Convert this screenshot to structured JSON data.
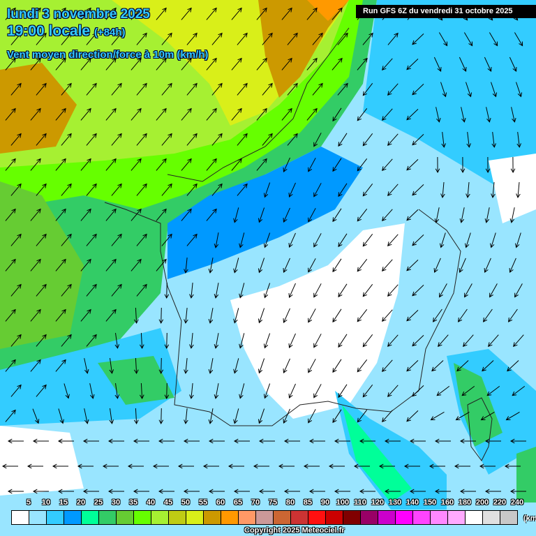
{
  "header": {
    "date": "lundi 3 novembre 2025",
    "time": "19:00 locale",
    "lead": "(+84h)",
    "parameter": "Vent moyen direction/force à 10m (km/h)",
    "run": "Run GFS 6Z du vendredi 31 octobre 2025"
  },
  "legend": {
    "unit": "(km/h)",
    "labels": [
      "5",
      "10",
      "15",
      "20",
      "25",
      "30",
      "35",
      "40",
      "45",
      "50",
      "55",
      "60",
      "65",
      "70",
      "75",
      "80",
      "85",
      "90",
      "100",
      "110",
      "120",
      "130",
      "140",
      "150",
      "160",
      "180",
      "200",
      "220",
      "240"
    ],
    "colors": [
      "#ffffff",
      "#99e5ff",
      "#33ccff",
      "#0099ff",
      "#00ff99",
      "#33cc66",
      "#66cc33",
      "#66ff00",
      "#a6f032",
      "#bfcc14",
      "#d9ef19",
      "#cc9900",
      "#ff9900",
      "#ff9966",
      "#cc9999",
      "#cc6633",
      "#cc3333",
      "#ff1010",
      "#cc0000",
      "#800000",
      "#990066",
      "#cc00cc",
      "#ff00ff",
      "#ff44ff",
      "#ff88ff",
      "#ffaaff",
      "#ffffff",
      "#e0e0e0",
      "#c8c8c8"
    ]
  },
  "footer": {
    "copyright": "Copyright 2025 Meteociel.fr"
  }
}
